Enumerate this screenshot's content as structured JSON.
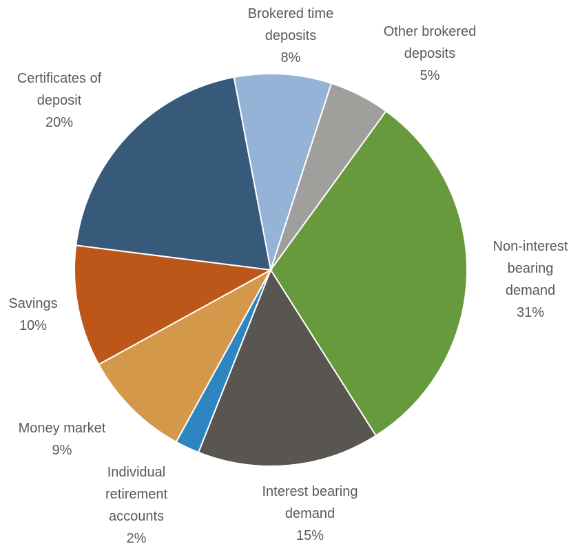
{
  "chart_data": {
    "type": "pie",
    "categories": [
      "Brokered time deposits",
      "Other brokered deposits",
      "Non-interest bearing demand",
      "Interest bearing demand",
      "Individual retirement accounts",
      "Money market",
      "Savings",
      "Certificates of deposit"
    ],
    "values": [
      8,
      5,
      31,
      15,
      2,
      9,
      10,
      20
    ],
    "value_labels": [
      "8%",
      "5%",
      "31%",
      "15%",
      "2%",
      "9%",
      "10%",
      "20%"
    ],
    "colors": [
      "#95b3d7",
      "#a19f9b",
      "#669a3c",
      "#595651",
      "#2e86c1",
      "#d4984a",
      "#bd5719",
      "#385a7a"
    ]
  }
}
